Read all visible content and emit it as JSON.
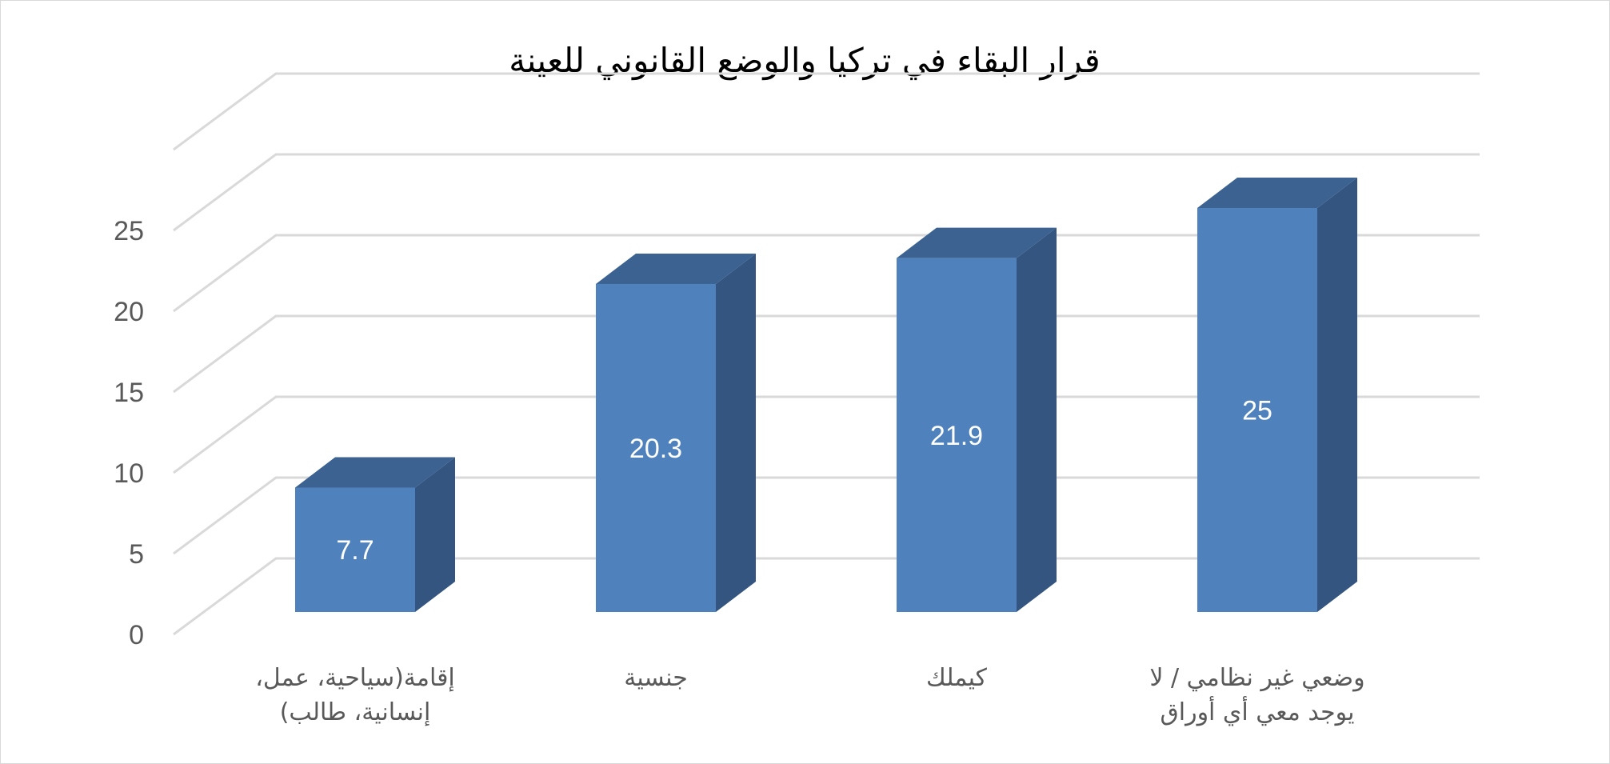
{
  "chart_data": {
    "type": "bar",
    "title": "قرار البقاء في تركيا والوضع القانوني للعينة",
    "categories": [
      [
        "إقامة(سياحية، عمل،",
        "إنسانية، طالب)"
      ],
      [
        "جنسية"
      ],
      [
        "كيملك"
      ],
      [
        "وضعي غير نظامي / لا",
        "يوجد معي أي أوراق"
      ]
    ],
    "values": [
      7.7,
      20.3,
      21.9,
      25
    ],
    "data_labels": [
      "7.7",
      "20.3",
      "21.9",
      "25"
    ],
    "y_ticks": [
      "0",
      "5",
      "10",
      "15",
      "20",
      "25"
    ],
    "ylim": [
      0,
      30
    ],
    "grid": true,
    "style": "3d-column",
    "colors": {
      "front": "#4f81bd",
      "top": "#3c6292",
      "side": "#33557f",
      "grid": "#d9d9d9"
    }
  }
}
